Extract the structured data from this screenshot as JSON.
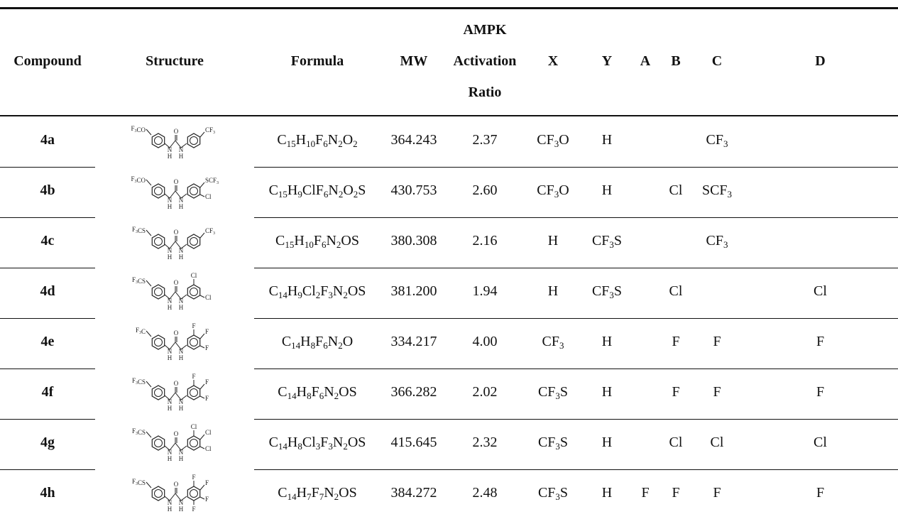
{
  "headers": {
    "compound": "Compound",
    "structure": "Structure",
    "formula": "Formula",
    "mw": "MW",
    "ampk_line1": "AMPK",
    "ampk_line2": "Activation",
    "ampk_line3": "Ratio",
    "x": "X",
    "y": "Y",
    "a": "A",
    "b": "B",
    "c": "C",
    "d": "D"
  },
  "rows": [
    {
      "compound": "4a",
      "formula": "C15H10F6N2O2",
      "mw": "364.243",
      "ratio": "2.37",
      "x": "CF3O",
      "y": "H",
      "a": "",
      "b": "",
      "c": "CF3",
      "d": "",
      "structure": {
        "left": "F3CO",
        "right_top": "",
        "right_side": "CF3",
        "right_bottom": "",
        "para": true
      }
    },
    {
      "compound": "4b",
      "formula": "C15H9ClF6N2O2S",
      "mw": "430.753",
      "ratio": "2.60",
      "x": "CF3O",
      "y": "H",
      "a": "",
      "b": "Cl",
      "c": "SCF3",
      "d": "",
      "structure": {
        "left": "F3CO",
        "right_top": "",
        "right_side": "SCF3",
        "right_bottom": "Cl",
        "para": true
      }
    },
    {
      "compound": "4c",
      "formula": "C15H10F6N2OS",
      "mw": "380.308",
      "ratio": "2.16",
      "x": "H",
      "y": "CF3S",
      "a": "",
      "b": "",
      "c": "CF3",
      "d": "",
      "structure": {
        "left": "F3CS",
        "right_top": "",
        "right_side": "CF3",
        "right_bottom": "",
        "para": false
      }
    },
    {
      "compound": "4d",
      "formula": "C14H9Cl2F3N2OS",
      "mw": "381.200",
      "ratio": "1.94",
      "x": "H",
      "y": "CF3S",
      "a": "",
      "b": "Cl",
      "c": "",
      "d": "Cl",
      "structure": {
        "left": "F3CS",
        "right_top": "Cl",
        "right_side": "",
        "right_bottom": "Cl",
        "para": false
      }
    },
    {
      "compound": "4e",
      "formula": "C14H8F6N2O",
      "mw": "334.217",
      "ratio": "4.00",
      "x": "CF3",
      "y": "H",
      "a": "",
      "b": "F",
      "c": "F",
      "d": "F",
      "structure": {
        "left": "F3C",
        "right_top": "F",
        "right_side": "F",
        "right_bottom": "F",
        "para": true
      }
    },
    {
      "compound": "4f",
      "formula": "C14H8F6N2OS",
      "mw": "366.282",
      "ratio": "2.02",
      "x": "CF3S",
      "y": "H",
      "a": "",
      "b": "F",
      "c": "F",
      "d": "F",
      "structure": {
        "left": "F3CS",
        "right_top": "F",
        "right_side": "F",
        "right_bottom": "F",
        "para": true
      }
    },
    {
      "compound": "4g",
      "formula": "C14H8Cl3F3N2OS",
      "mw": "415.645",
      "ratio": "2.32",
      "x": "CF3S",
      "y": "H",
      "a": "",
      "b": "Cl",
      "c": "Cl",
      "d": "Cl",
      "structure": {
        "left": "F3CS",
        "right_top": "Cl",
        "right_side": "Cl",
        "right_bottom": "Cl",
        "para": true
      }
    },
    {
      "compound": "4h",
      "formula": "C14H7F7N2OS",
      "mw": "384.272",
      "ratio": "2.48",
      "x": "CF3S",
      "y": "H",
      "a": "F",
      "b": "F",
      "c": "F",
      "d": "F",
      "structure": {
        "left": "F3CS",
        "right_top": "F",
        "right_side": "F",
        "right_bottom": "F",
        "extra_bottom": "F",
        "para": true
      }
    }
  ],
  "structure_common": {
    "carbonyl": "O",
    "nh_left": "N",
    "nh_right": "N",
    "h_left": "H",
    "h_right": "H"
  }
}
